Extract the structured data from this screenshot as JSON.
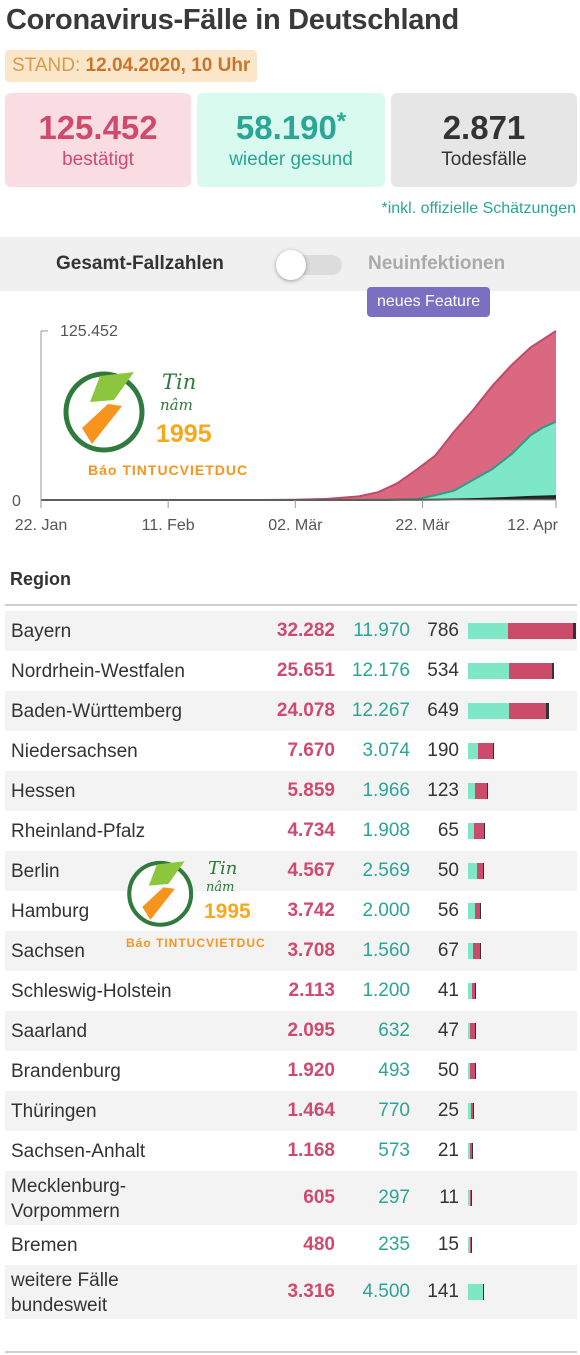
{
  "header": {
    "title": "Coronavirus-Fälle in Deutschland",
    "stand_label": "STAND:",
    "stand_value": "12.04.2020, 10 Uhr"
  },
  "stats": {
    "confirmed": {
      "value": "125.452",
      "label": "bestätigt"
    },
    "recovered": {
      "value": "58.190",
      "star": "*",
      "label": "wieder gesund"
    },
    "deaths": {
      "value": "2.871",
      "label": "Todesfälle"
    },
    "footnote": "*inkl. offizielle Schätzungen"
  },
  "toggle": {
    "left_label": "Gesamt-Fallzahlen",
    "right_label": "Neuinfektionen",
    "selected": "Gesamt-Fallzahlen",
    "badge": "neues Feature"
  },
  "watermark": {
    "line1": "Tin",
    "line2": "nâm",
    "year": "1995",
    "brand": "Báo TINTUCVIETDUC"
  },
  "colors": {
    "confirmed": "#d04a6e",
    "recovered": "#2aa596",
    "active_fill": "#d96880",
    "recovered_fill": "#7ee8c6",
    "deaths_fill": "#333333"
  },
  "chart_data": {
    "type": "area",
    "title": "",
    "xlabel": "",
    "ylabel": "",
    "x_ticks": [
      "22. Jan",
      "11. Feb",
      "02. Mär",
      "22. Mär",
      "12. Apr"
    ],
    "y_ticks": [
      "0",
      "125.452"
    ],
    "ylim": [
      0,
      125452
    ],
    "xlim": [
      "2020-01-22",
      "2020-04-12"
    ],
    "grid": false,
    "x": [
      "2020-01-22",
      "2020-02-11",
      "2020-02-26",
      "2020-03-02",
      "2020-03-07",
      "2020-03-12",
      "2020-03-15",
      "2020-03-18",
      "2020-03-21",
      "2020-03-24",
      "2020-03-27",
      "2020-03-30",
      "2020-04-02",
      "2020-04-05",
      "2020-04-08",
      "2020-04-10",
      "2020-04-12"
    ],
    "series": [
      {
        "values": [
          0,
          16,
          21,
          160,
          800,
          2700,
          5800,
          12300,
          22200,
          32900,
          50900,
          66900,
          84800,
          100100,
          113300,
          119400,
          125452
        ]
      },
      {
        "values": [
          0,
          0,
          14,
          16,
          18,
          50,
          100,
          200,
          500,
          3500,
          7000,
          15000,
          23000,
          34000,
          48000,
          54000,
          58190
        ]
      },
      {
        "values": [
          0,
          0,
          0,
          0,
          0,
          5,
          15,
          40,
          80,
          160,
          340,
          640,
          1100,
          1600,
          2300,
          2600,
          2871
        ]
      }
    ]
  },
  "table": {
    "header": "Region",
    "max_total": 32282,
    "rows": [
      {
        "name": "Bayern",
        "confirmed": "32.282",
        "recovered": "11.970",
        "deaths": "786",
        "c": 32282,
        "r": 11970,
        "d": 786
      },
      {
        "name": "Nordrhein-Westfalen",
        "confirmed": "25.651",
        "recovered": "12.176",
        "deaths": "534",
        "c": 25651,
        "r": 12176,
        "d": 534
      },
      {
        "name": "Baden-Württemberg",
        "confirmed": "24.078",
        "recovered": "12.267",
        "deaths": "649",
        "c": 24078,
        "r": 12267,
        "d": 649
      },
      {
        "name": "Niedersachsen",
        "confirmed": "7.670",
        "recovered": "3.074",
        "deaths": "190",
        "c": 7670,
        "r": 3074,
        "d": 190
      },
      {
        "name": "Hessen",
        "confirmed": "5.859",
        "recovered": "1.966",
        "deaths": "123",
        "c": 5859,
        "r": 1966,
        "d": 123
      },
      {
        "name": "Rheinland-Pfalz",
        "confirmed": "4.734",
        "recovered": "1.908",
        "deaths": "65",
        "c": 4734,
        "r": 1908,
        "d": 65
      },
      {
        "name": "Berlin",
        "confirmed": "4.567",
        "recovered": "2.569",
        "deaths": "50",
        "c": 4567,
        "r": 2569,
        "d": 50
      },
      {
        "name": "Hamburg",
        "confirmed": "3.742",
        "recovered": "2.000",
        "deaths": "56",
        "c": 3742,
        "r": 2000,
        "d": 56
      },
      {
        "name": "Sachsen",
        "confirmed": "3.708",
        "recovered": "1.560",
        "deaths": "67",
        "c": 3708,
        "r": 1560,
        "d": 67
      },
      {
        "name": "Schleswig-Holstein",
        "confirmed": "2.113",
        "recovered": "1.200",
        "deaths": "41",
        "c": 2113,
        "r": 1200,
        "d": 41
      },
      {
        "name": "Saarland",
        "confirmed": "2.095",
        "recovered": "632",
        "deaths": "47",
        "c": 2095,
        "r": 632,
        "d": 47
      },
      {
        "name": "Brandenburg",
        "confirmed": "1.920",
        "recovered": "493",
        "deaths": "50",
        "c": 1920,
        "r": 493,
        "d": 50
      },
      {
        "name": "Thüringen",
        "confirmed": "1.464",
        "recovered": "770",
        "deaths": "25",
        "c": 1464,
        "r": 770,
        "d": 25
      },
      {
        "name": "Sachsen-Anhalt",
        "confirmed": "1.168",
        "recovered": "573",
        "deaths": "21",
        "c": 1168,
        "r": 573,
        "d": 21
      },
      {
        "name_lines": [
          "Mecklenburg-",
          "Vorpommern"
        ],
        "confirmed": "605",
        "recovered": "297",
        "deaths": "11",
        "c": 605,
        "r": 297,
        "d": 11
      },
      {
        "name": "Bremen",
        "confirmed": "480",
        "recovered": "235",
        "deaths": "15",
        "c": 480,
        "r": 235,
        "d": 15
      },
      {
        "name_lines": [
          "weitere Fälle",
          "bundesweit"
        ],
        "confirmed": "3.316",
        "recovered": "4.500",
        "deaths": "141",
        "c": 3316,
        "r": 4500,
        "d": 141
      }
    ]
  }
}
